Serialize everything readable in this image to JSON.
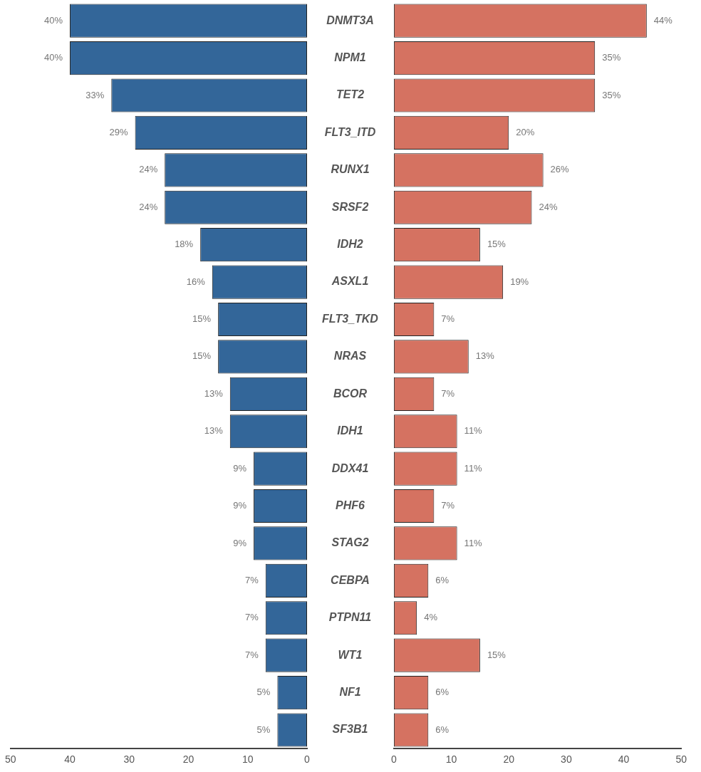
{
  "chart_data": [
    {
      "type": "bar",
      "orientation": "horizontal",
      "categories": [
        "DNMT3A",
        "NPM1",
        "TET2",
        "FLT3_ITD",
        "RUNX1",
        "SRSF2",
        "IDH2",
        "ASXL1",
        "FLT3_TKD",
        "NRAS",
        "BCOR",
        "IDH1",
        "DDX41",
        "PHF6",
        "STAG2",
        "CEBPA",
        "PTPN11",
        "WT1",
        "NF1",
        "SF3B1"
      ],
      "values": [
        40,
        40,
        33,
        29,
        24,
        24,
        18,
        16,
        15,
        15,
        13,
        13,
        9,
        9,
        9,
        7,
        7,
        7,
        5,
        5
      ],
      "value_labels": [
        "40%",
        "40%",
        "33%",
        "29%",
        "24%",
        "24%",
        "18%",
        "16%",
        "15%",
        "15%",
        "13%",
        "13%",
        "9%",
        "9%",
        "9%",
        "7%",
        "7%",
        "7%",
        "5%",
        "5%"
      ],
      "color": "#336699",
      "xlim": [
        50,
        0
      ],
      "xticks": [
        50,
        40,
        30,
        20,
        10,
        0
      ],
      "grid": false,
      "legend": false
    },
    {
      "type": "bar",
      "orientation": "horizontal",
      "categories": [
        null,
        null,
        null,
        null,
        null,
        null,
        null,
        null,
        null,
        null,
        null,
        null,
        null,
        null,
        null,
        null,
        null,
        null,
        null,
        null
      ],
      "values": [
        44,
        35,
        35,
        20,
        26,
        24,
        15,
        19,
        7,
        13,
        7,
        11,
        11,
        7,
        11,
        6,
        4,
        15,
        6,
        6
      ],
      "value_labels": [
        "44%",
        "35%",
        "35%",
        "20%",
        "26%",
        "24%",
        "15%",
        "19%",
        "7%",
        "13%",
        "7%",
        "11%",
        "11%",
        "7%",
        "11%",
        "6%",
        "4%",
        "15%",
        "6%",
        "6%"
      ],
      "color": "#d57261",
      "xlim": [
        0,
        50
      ],
      "xticks": [
        0,
        10,
        20,
        30,
        40,
        50
      ],
      "tick_labels": "x",
      "grid": false,
      "legend": false
    }
  ]
}
